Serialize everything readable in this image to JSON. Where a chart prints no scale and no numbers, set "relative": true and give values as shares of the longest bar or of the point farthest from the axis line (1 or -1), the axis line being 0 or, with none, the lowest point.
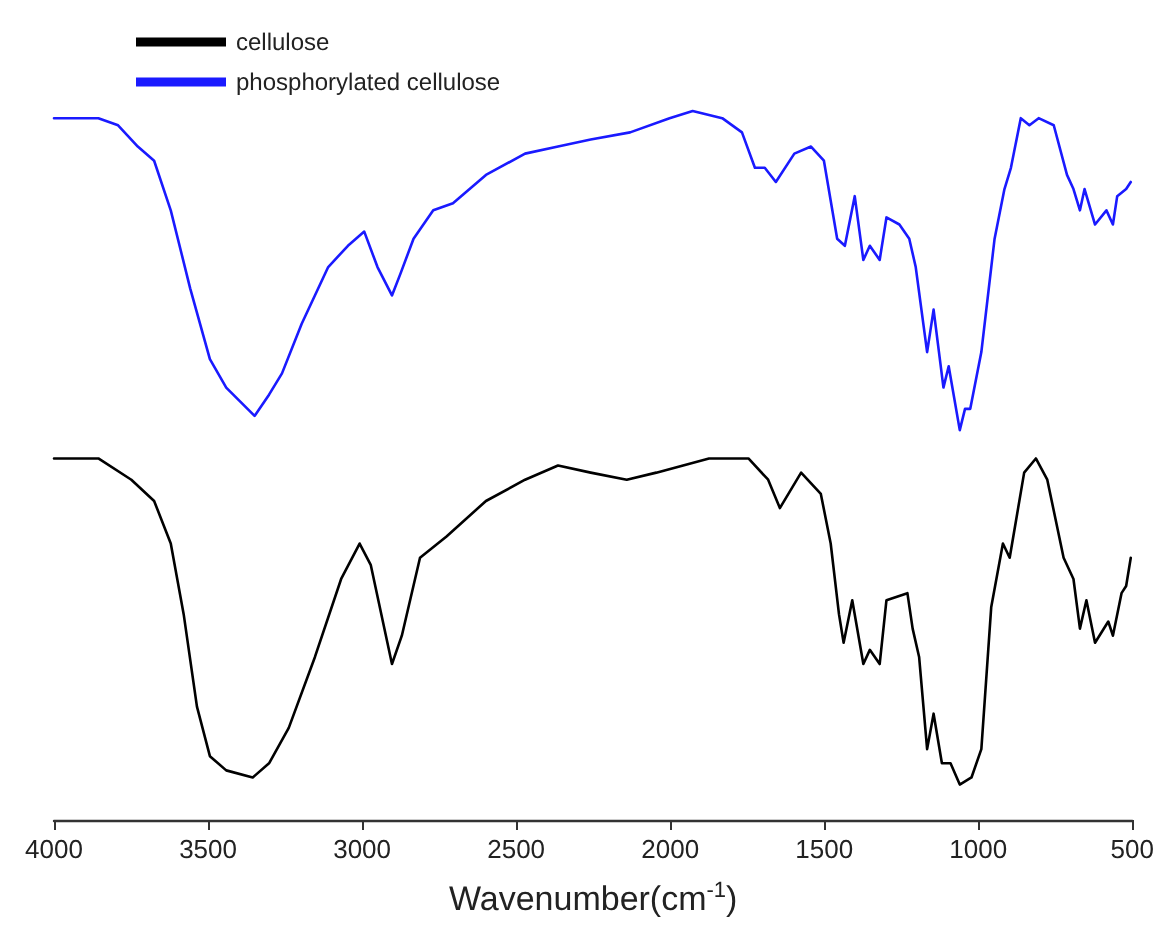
{
  "chart_data": {
    "type": "line",
    "xlabel": "Wavenumber(cm$^{-1}$)",
    "relative": true,
    "xlim": [
      4000,
      500
    ],
    "xticks": [
      4000,
      3500,
      3000,
      2500,
      2000,
      1500,
      1000,
      500
    ],
    "tick_labels": "x",
    "grid": false,
    "legend": "top left",
    "marker": "none",
    "line_style": "solid",
    "series": [
      {
        "name": "cellulose",
        "color": "#000000",
        "x": [
          4000,
          3856,
          3749,
          3675,
          3621,
          3579,
          3536,
          3494,
          3441,
          3355,
          3302,
          3238,
          3153,
          3068,
          3008,
          2972,
          2903,
          2871,
          2812,
          2726,
          2598,
          2471,
          2364,
          2258,
          2141,
          2045,
          1874,
          1746,
          1682,
          1644,
          1575,
          1511,
          1479,
          1452,
          1437,
          1409,
          1373,
          1352,
          1320,
          1298,
          1230,
          1213,
          1192,
          1166,
          1145,
          1118,
          1090,
          1060,
          1022,
          990,
          958,
          920,
          898,
          851,
          813,
          776,
          723,
          691,
          670,
          649,
          621,
          578,
          563,
          535,
          520,
          505
        ],
        "values": [
          0.51,
          0.51,
          0.48,
          0.45,
          0.39,
          0.29,
          0.16,
          0.09,
          0.07,
          0.06,
          0.08,
          0.13,
          0.23,
          0.34,
          0.39,
          0.36,
          0.22,
          0.26,
          0.37,
          0.4,
          0.45,
          0.48,
          0.5,
          0.49,
          0.48,
          0.49,
          0.51,
          0.51,
          0.48,
          0.44,
          0.49,
          0.46,
          0.39,
          0.29,
          0.25,
          0.31,
          0.22,
          0.24,
          0.22,
          0.31,
          0.32,
          0.27,
          0.23,
          0.1,
          0.15,
          0.08,
          0.08,
          0.05,
          0.06,
          0.1,
          0.3,
          0.39,
          0.37,
          0.49,
          0.51,
          0.48,
          0.37,
          0.34,
          0.27,
          0.31,
          0.25,
          0.28,
          0.26,
          0.32,
          0.33,
          0.37
        ]
      },
      {
        "name": "phosphorylated cellulose",
        "color": "#1a1aff",
        "x": [
          4000,
          3856,
          3792,
          3728,
          3675,
          3621,
          3558,
          3494,
          3441,
          3349,
          3302,
          3260,
          3196,
          3110,
          3046,
          2993,
          2950,
          2903,
          2876,
          2833,
          2769,
          2705,
          2598,
          2471,
          2364,
          2258,
          2130,
          2002,
          1927,
          1831,
          1767,
          1725,
          1693,
          1657,
          1597,
          1543,
          1501,
          1458,
          1433,
          1401,
          1373,
          1352,
          1320,
          1298,
          1256,
          1224,
          1203,
          1166,
          1145,
          1113,
          1096,
          1060,
          1043,
          1026,
          990,
          947,
          915,
          894,
          862,
          834,
          804,
          755,
          712,
          691,
          670,
          655,
          621,
          584,
          563,
          549,
          520,
          505
        ],
        "values": [
          0.99,
          0.99,
          0.98,
          0.95,
          0.93,
          0.86,
          0.75,
          0.65,
          0.61,
          0.57,
          0.6,
          0.63,
          0.7,
          0.78,
          0.81,
          0.83,
          0.78,
          0.74,
          0.77,
          0.82,
          0.86,
          0.87,
          0.91,
          0.94,
          0.95,
          0.96,
          0.97,
          0.99,
          1.0,
          0.99,
          0.97,
          0.92,
          0.92,
          0.9,
          0.94,
          0.95,
          0.93,
          0.82,
          0.81,
          0.88,
          0.79,
          0.81,
          0.79,
          0.85,
          0.84,
          0.82,
          0.78,
          0.66,
          0.72,
          0.61,
          0.64,
          0.55,
          0.58,
          0.58,
          0.66,
          0.82,
          0.89,
          0.92,
          0.99,
          0.98,
          0.99,
          0.98,
          0.91,
          0.89,
          0.86,
          0.89,
          0.84,
          0.86,
          0.84,
          0.88,
          0.89,
          0.9
        ]
      }
    ]
  }
}
